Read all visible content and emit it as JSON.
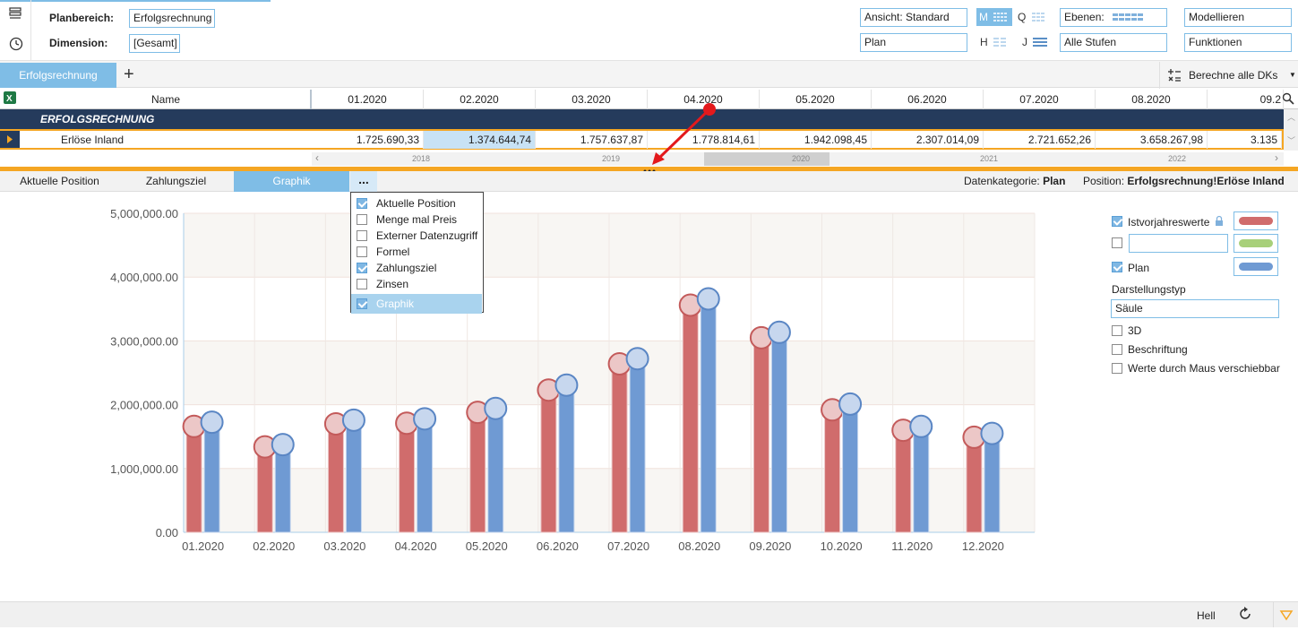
{
  "header": {
    "planbereich_label": "Planbereich:",
    "planbereich_value": "Erfolgsrechnung",
    "dimension_label": "Dimension:",
    "dimension_value": "[Gesamt]",
    "ansicht": "Ansicht: Standard",
    "plan": "Plan",
    "ebenen": "Ebenen:",
    "alle_stufen": "Alle Stufen",
    "modellieren": "Modellieren",
    "funktionen": "Funktionen",
    "m": "M",
    "q": "Q",
    "h": "H",
    "j": "J"
  },
  "tabs": {
    "active": "Erfolgsrechnung",
    "add": "+"
  },
  "toolbar": {
    "berechne": "Berechne alle DKs"
  },
  "grid": {
    "name_header": "Name",
    "columns": [
      "01.2020",
      "02.2020",
      "03.2020",
      "04.2020",
      "05.2020",
      "06.2020",
      "07.2020",
      "08.2020",
      "09.2"
    ],
    "group_row": "ERFOLGSRECHNUNG",
    "row_name": "Erlöse Inland",
    "row_values": [
      "1.725.690,33",
      "1.374.644,74",
      "1.757.637,87",
      "1.778.814,61",
      "1.942.098,45",
      "2.307.014,09",
      "2.721.652,26",
      "3.658.267,98",
      "3.135"
    ],
    "timeline_years": [
      "2018",
      "2019",
      "2020",
      "2021",
      "2022"
    ],
    "timeline_left": "‹",
    "timeline_right": "›"
  },
  "bottom_tabs": {
    "aktuelle_position": "Aktuelle Position",
    "zahlungsziel": "Zahlungsziel",
    "graphik": "Graphik",
    "more": "...",
    "datenkategorie_label": "Datenkategorie:",
    "datenkategorie_value": "Plan",
    "position_label": "Position:",
    "position_value": "Erfolgsrechnung!Erlöse Inland"
  },
  "dropdown_menu": {
    "items": [
      {
        "label": "Aktuelle Position",
        "checked": true
      },
      {
        "label": "Menge mal Preis",
        "checked": false
      },
      {
        "label": "Externer Datenzugriff",
        "checked": false
      },
      {
        "label": "Formel",
        "checked": false
      },
      {
        "label": "Zahlungsziel",
        "checked": true
      },
      {
        "label": "Zinsen",
        "checked": false
      },
      {
        "label": "Graphik",
        "checked": true
      }
    ]
  },
  "side_panel": {
    "istvorjahreswerte": "Istvorjahreswerte",
    "empty_field": "",
    "plan": "Plan",
    "darstellungstyp_label": "Darstellungstyp",
    "darstellungstyp_value": "Säule",
    "opt_3d": "3D",
    "opt_beschriftung": "Beschriftung",
    "opt_maus": "Werte durch Maus verschiebbar",
    "colors": {
      "red": "#d06c6c",
      "green": "#a8d07a",
      "blue": "#6f9ad3"
    }
  },
  "status": {
    "theme": "Hell"
  },
  "chart_data": {
    "type": "bar",
    "categories": [
      "01.2020",
      "02.2020",
      "03.2020",
      "04.2020",
      "05.2020",
      "06.2020",
      "07.2020",
      "08.2020",
      "09.2020",
      "10.2020",
      "11.2020",
      "12.2020"
    ],
    "series": [
      {
        "name": "Istvorjahreswerte",
        "color": "#d06c6c",
        "values": [
          1660000,
          1340000,
          1700000,
          1710000,
          1880000,
          2230000,
          2640000,
          3560000,
          3050000,
          1920000,
          1600000,
          1490000
        ]
      },
      {
        "name": "Plan",
        "color": "#6f9ad3",
        "values": [
          1725690,
          1374645,
          1757638,
          1778815,
          1942098,
          2307014,
          2721652,
          3658268,
          3135000,
          2010000,
          1660000,
          1550000
        ]
      }
    ],
    "yticks": [
      "0.00",
      "1,000,000.00",
      "2,000,000.00",
      "3,000,000.00",
      "4,000,000.00",
      "5,000,000.00"
    ],
    "ylim": [
      0,
      5000000
    ],
    "grid": true
  }
}
